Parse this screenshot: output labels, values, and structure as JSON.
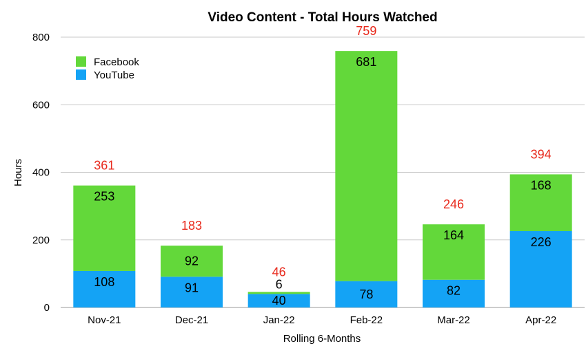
{
  "chart_data": {
    "type": "bar",
    "stacked": true,
    "title": "Video Content - Total Hours Watched",
    "xlabel": "Rolling 6-Months",
    "ylabel": "Hours",
    "ylim": [
      0,
      800
    ],
    "yticks": [
      0,
      200,
      400,
      600,
      800
    ],
    "grid": true,
    "legend_position": "top-left",
    "categories": [
      "Nov-21",
      "Dec-21",
      "Jan-22",
      "Feb-22",
      "Mar-22",
      "Apr-22"
    ],
    "series": [
      {
        "name": "YouTube",
        "color": "#14a3f5",
        "values": [
          108,
          91,
          40,
          78,
          82,
          226
        ]
      },
      {
        "name": "Facebook",
        "color": "#63d83a",
        "values": [
          253,
          92,
          6,
          681,
          164,
          168
        ]
      }
    ],
    "totals": [
      361,
      183,
      46,
      759,
      246,
      394
    ],
    "totals_color": "#e8291c"
  }
}
